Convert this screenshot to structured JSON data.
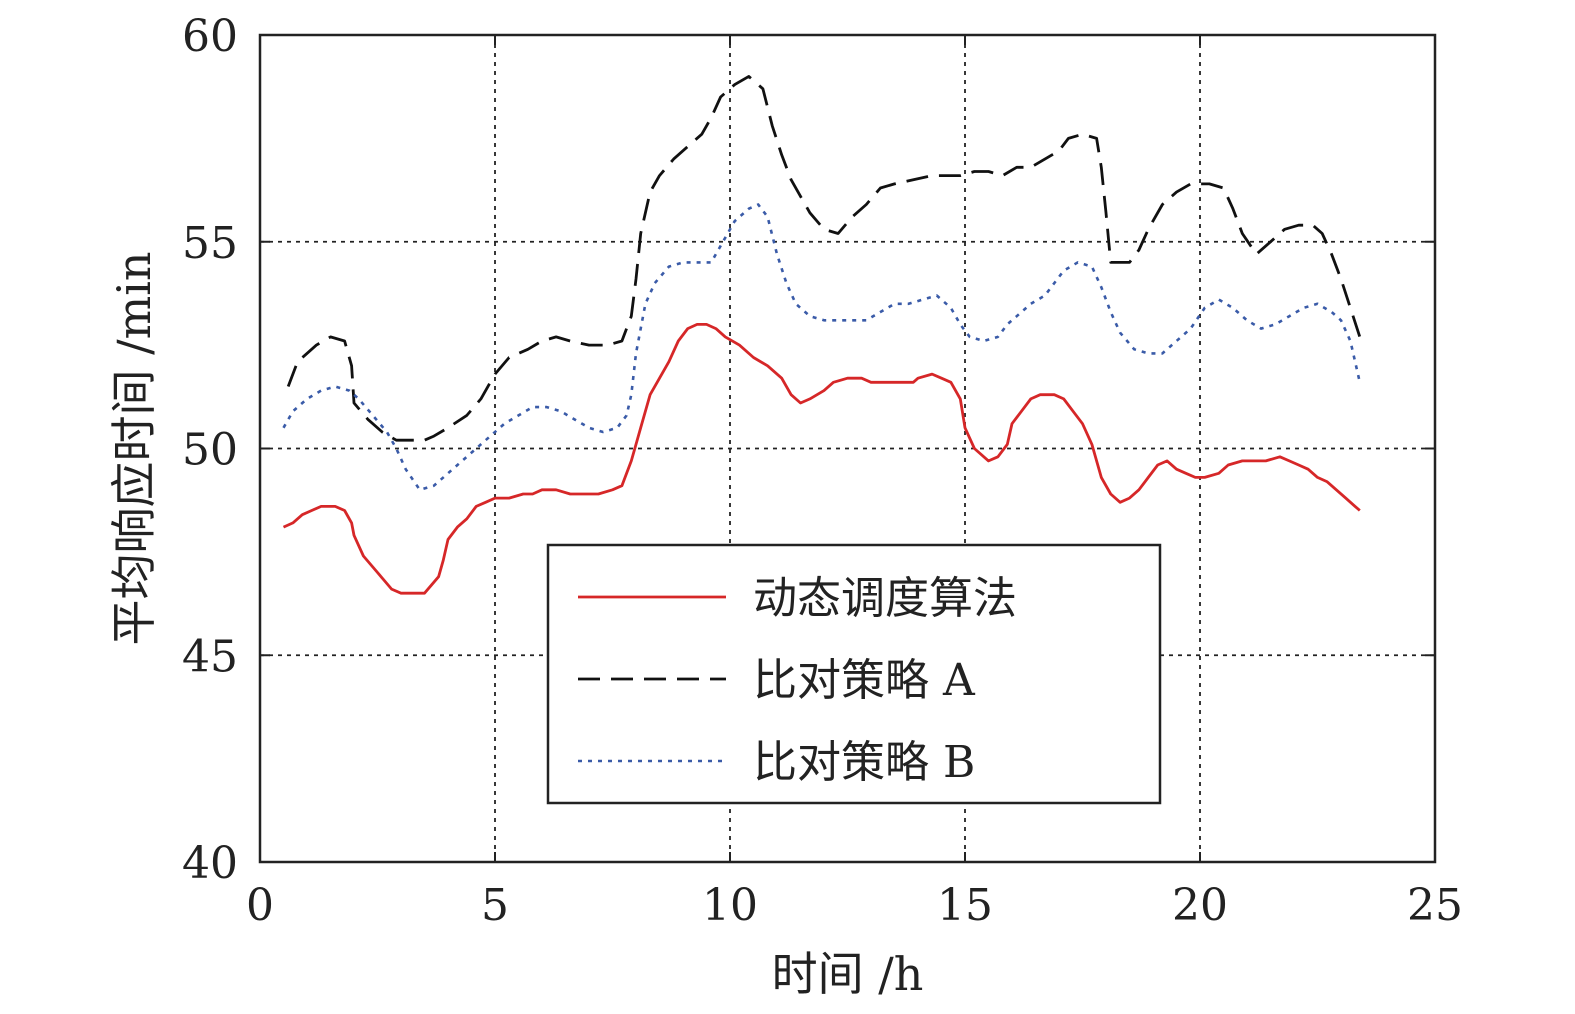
{
  "chart_data": {
    "type": "line",
    "xlabel": "时间 /h",
    "ylabel": "平均响应时间 /min",
    "xlim": [
      0,
      25
    ],
    "ylim": [
      40,
      60
    ],
    "xticks": [
      0,
      5,
      10,
      15,
      20,
      25
    ],
    "yticks": [
      40,
      45,
      50,
      55,
      60
    ],
    "xtick_labels": [
      "0",
      "5",
      "10",
      "15",
      "20",
      "25"
    ],
    "ytick_labels": [
      "40",
      "45",
      "50",
      "55",
      "60"
    ],
    "grid": true,
    "legend_position": "lower-center",
    "series": [
      {
        "name": "动态调度算法",
        "color": "#d62728",
        "style": "solid",
        "x": [
          0.5,
          0.7,
          0.9,
          1.1,
          1.3,
          1.6,
          1.8,
          1.95,
          2.0,
          2.2,
          2.5,
          2.8,
          3.0,
          3.2,
          3.5,
          3.8,
          3.9,
          4.0,
          4.2,
          4.4,
          4.6,
          4.8,
          5.0,
          5.3,
          5.6,
          5.8,
          6.0,
          6.3,
          6.6,
          6.9,
          7.2,
          7.5,
          7.7,
          7.9,
          8.1,
          8.3,
          8.5,
          8.7,
          8.9,
          9.1,
          9.3,
          9.5,
          9.7,
          9.9,
          10.2,
          10.5,
          10.8,
          11.1,
          11.3,
          11.5,
          11.7,
          12.0,
          12.2,
          12.5,
          12.8,
          13.0,
          13.3,
          13.6,
          13.9,
          14.0,
          14.3,
          14.5,
          14.7,
          14.9,
          15.0,
          15.2,
          15.5,
          15.7,
          15.9,
          16.0,
          16.2,
          16.4,
          16.6,
          16.9,
          17.1,
          17.3,
          17.5,
          17.7,
          17.9,
          18.1,
          18.3,
          18.5,
          18.7,
          18.9,
          19.1,
          19.3,
          19.5,
          19.7,
          19.9,
          20.1,
          20.4,
          20.6,
          20.9,
          21.1,
          21.4,
          21.7,
          21.9,
          22.1,
          22.3,
          22.5,
          22.7,
          22.9,
          23.1,
          23.3,
          23.4
        ],
        "y": [
          48.1,
          48.2,
          48.4,
          48.5,
          48.6,
          48.6,
          48.5,
          48.2,
          47.9,
          47.4,
          47.0,
          46.6,
          46.5,
          46.5,
          46.5,
          46.9,
          47.3,
          47.8,
          48.1,
          48.3,
          48.6,
          48.7,
          48.8,
          48.8,
          48.9,
          48.9,
          49.0,
          49.0,
          48.9,
          48.9,
          48.9,
          49.0,
          49.1,
          49.7,
          50.5,
          51.3,
          51.7,
          52.1,
          52.6,
          52.9,
          53.0,
          53.0,
          52.9,
          52.7,
          52.5,
          52.2,
          52.0,
          51.7,
          51.3,
          51.1,
          51.2,
          51.4,
          51.6,
          51.7,
          51.7,
          51.6,
          51.6,
          51.6,
          51.6,
          51.7,
          51.8,
          51.7,
          51.6,
          51.2,
          50.5,
          50.0,
          49.7,
          49.8,
          50.1,
          50.6,
          50.9,
          51.2,
          51.3,
          51.3,
          51.2,
          50.9,
          50.6,
          50.1,
          49.3,
          48.9,
          48.7,
          48.8,
          49.0,
          49.3,
          49.6,
          49.7,
          49.5,
          49.4,
          49.3,
          49.3,
          49.4,
          49.6,
          49.7,
          49.7,
          49.7,
          49.8,
          49.7,
          49.6,
          49.5,
          49.3,
          49.2,
          49.0,
          48.8,
          48.6,
          48.5
        ]
      },
      {
        "name": "比对策略 A",
        "color": "#111111",
        "style": "dashed",
        "x": [
          0.6,
          0.8,
          1.0,
          1.2,
          1.5,
          1.8,
          1.95,
          2.0,
          2.3,
          2.6,
          2.9,
          3.1,
          3.5,
          3.7,
          4.0,
          4.4,
          4.7,
          5.0,
          5.3,
          5.7,
          6.0,
          6.3,
          6.6,
          7.0,
          7.4,
          7.7,
          7.9,
          8.0,
          8.1,
          8.3,
          8.5,
          8.8,
          9.1,
          9.4,
          9.6,
          9.8,
          10.1,
          10.4,
          10.7,
          10.9,
          11.1,
          11.3,
          11.5,
          11.7,
          12.0,
          12.3,
          12.6,
          12.9,
          13.2,
          13.5,
          13.9,
          14.3,
          14.6,
          14.9,
          15.2,
          15.5,
          15.8,
          16.1,
          16.4,
          16.7,
          17.0,
          17.2,
          17.5,
          17.8,
          17.9,
          18.0,
          18.1,
          18.3,
          18.5,
          18.7,
          18.9,
          19.2,
          19.5,
          19.8,
          20.2,
          20.5,
          20.7,
          20.9,
          21.2,
          21.5,
          21.8,
          22.1,
          22.4,
          22.6,
          22.8,
          23.0,
          23.2,
          23.4
        ],
        "y": [
          51.5,
          52.1,
          52.3,
          52.5,
          52.7,
          52.6,
          52.0,
          51.1,
          50.7,
          50.4,
          50.2,
          50.2,
          50.2,
          50.3,
          50.5,
          50.8,
          51.2,
          51.8,
          52.2,
          52.4,
          52.6,
          52.7,
          52.6,
          52.5,
          52.5,
          52.6,
          53.2,
          54.1,
          55.2,
          56.2,
          56.6,
          57.0,
          57.3,
          57.6,
          58.0,
          58.5,
          58.8,
          59.0,
          58.7,
          57.8,
          57.1,
          56.5,
          56.1,
          55.7,
          55.3,
          55.2,
          55.6,
          55.9,
          56.3,
          56.4,
          56.5,
          56.6,
          56.6,
          56.6,
          56.7,
          56.7,
          56.6,
          56.8,
          56.8,
          57.0,
          57.2,
          57.5,
          57.6,
          57.5,
          56.8,
          55.7,
          54.5,
          54.5,
          54.5,
          54.8,
          55.3,
          55.9,
          56.2,
          56.4,
          56.4,
          56.3,
          55.8,
          55.2,
          54.7,
          55.0,
          55.3,
          55.4,
          55.4,
          55.2,
          54.7,
          54.1,
          53.4,
          52.7
        ]
      },
      {
        "name": "比对策略 B",
        "color": "#3a5ba8",
        "style": "dotted",
        "x": [
          0.5,
          0.7,
          1.0,
          1.3,
          1.6,
          1.9,
          2.1,
          2.4,
          2.7,
          2.9,
          3.1,
          3.4,
          3.7,
          4.0,
          4.3,
          4.6,
          4.9,
          5.2,
          5.5,
          5.8,
          6.1,
          6.4,
          6.7,
          7.0,
          7.3,
          7.6,
          7.8,
          7.9,
          8.0,
          8.2,
          8.4,
          8.7,
          9.0,
          9.3,
          9.6,
          9.8,
          10.1,
          10.4,
          10.6,
          10.8,
          11.0,
          11.2,
          11.4,
          11.7,
          12.0,
          12.3,
          12.6,
          12.9,
          13.2,
          13.5,
          13.8,
          14.1,
          14.4,
          14.7,
          14.9,
          15.1,
          15.4,
          15.7,
          15.9,
          16.1,
          16.4,
          16.7,
          16.9,
          17.1,
          17.4,
          17.7,
          17.9,
          18.1,
          18.3,
          18.6,
          18.9,
          19.2,
          19.5,
          19.8,
          20.1,
          20.4,
          20.7,
          21.0,
          21.3,
          21.6,
          21.9,
          22.2,
          22.5,
          22.8,
          23.0,
          23.2,
          23.4
        ],
        "y": [
          50.5,
          50.9,
          51.2,
          51.4,
          51.5,
          51.4,
          51.2,
          50.8,
          50.4,
          50.0,
          49.5,
          49.0,
          49.1,
          49.4,
          49.7,
          50.0,
          50.3,
          50.6,
          50.8,
          51.0,
          51.0,
          50.9,
          50.7,
          50.5,
          50.4,
          50.5,
          50.8,
          51.3,
          52.3,
          53.5,
          54.0,
          54.4,
          54.5,
          54.5,
          54.5,
          54.9,
          55.5,
          55.8,
          55.9,
          55.6,
          54.7,
          54.0,
          53.5,
          53.2,
          53.1,
          53.1,
          53.1,
          53.1,
          53.3,
          53.5,
          53.5,
          53.6,
          53.7,
          53.4,
          53.0,
          52.7,
          52.6,
          52.7,
          53.0,
          53.2,
          53.5,
          53.7,
          54.0,
          54.3,
          54.5,
          54.4,
          53.9,
          53.3,
          52.8,
          52.4,
          52.3,
          52.3,
          52.6,
          52.9,
          53.4,
          53.6,
          53.4,
          53.1,
          52.9,
          53.0,
          53.2,
          53.4,
          53.5,
          53.3,
          53.1,
          52.6,
          51.6
        ]
      }
    ]
  }
}
